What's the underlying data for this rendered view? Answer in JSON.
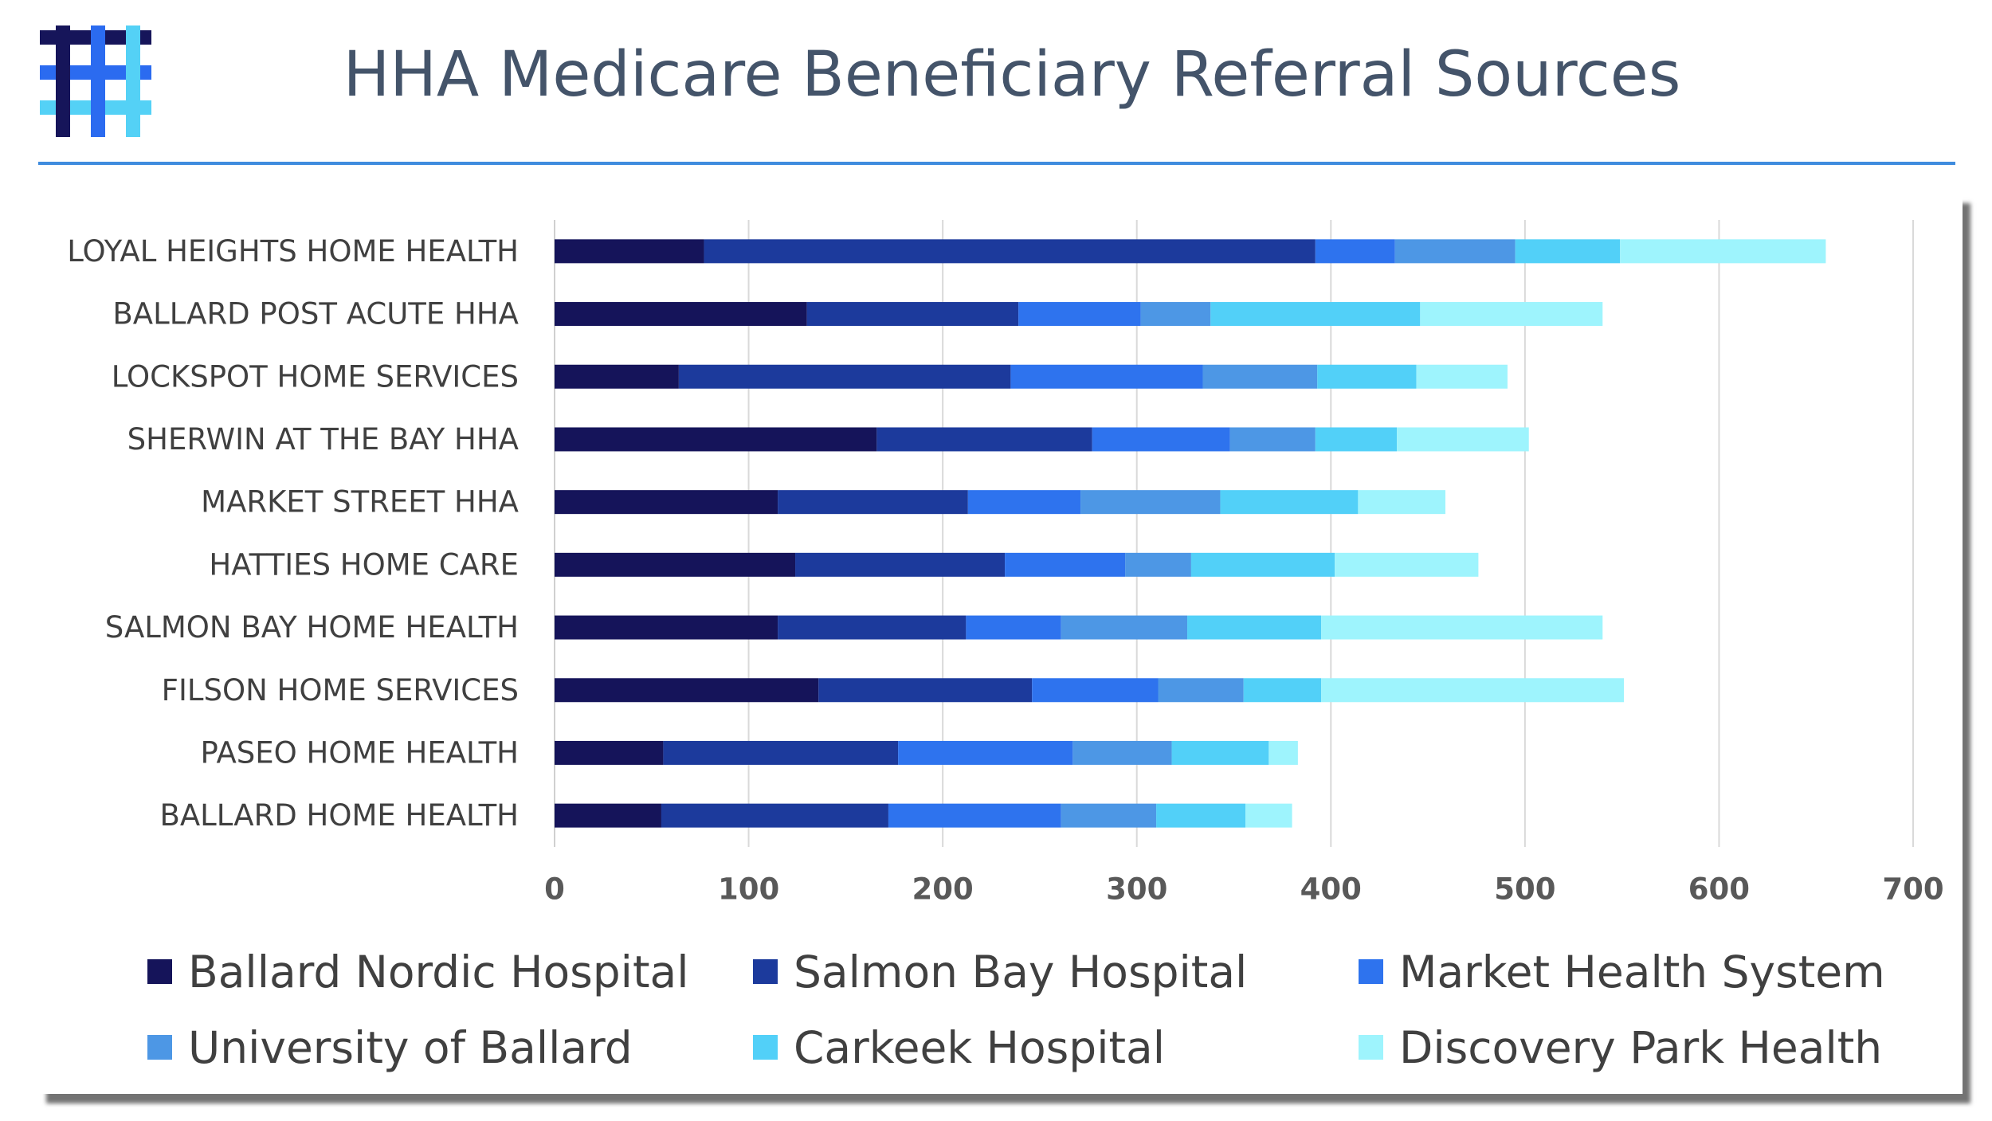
{
  "page": {
    "title": "HHA Medicare Beneficiary Referral Sources",
    "logo": {
      "icon": "hashtag-grid-logo",
      "colors": [
        "#16155a",
        "#2b6bf0",
        "#54d1f6"
      ]
    }
  },
  "chart_data": {
    "type": "bar",
    "orientation": "horizontal",
    "stacked": true,
    "title": "HHA Medicare Beneficiary Referral Sources",
    "xlabel": "",
    "ylabel": "",
    "xlim": [
      0,
      700
    ],
    "xticks": [
      0,
      100,
      200,
      300,
      400,
      500,
      600,
      700
    ],
    "grid": "vertical",
    "legend_position": "bottom",
    "categories": [
      "LOYAL HEIGHTS HOME HEALTH",
      "BALLARD POST ACUTE HHA",
      "LOCKSPOT HOME SERVICES",
      "SHERWIN AT THE BAY HHA",
      "MARKET STREET HHA",
      "HATTIES HOME CARE",
      "SALMON BAY HOME HEALTH",
      "FILSON HOME SERVICES",
      "PASEO HOME HEALTH",
      "BALLARD HOME HEALTH"
    ],
    "series": [
      {
        "name": "Ballard Nordic Hospital",
        "color": "#15145a",
        "values": [
          77,
          130,
          64,
          166,
          115,
          124,
          115,
          136,
          56,
          55
        ]
      },
      {
        "name": "Salmon Bay Hospital",
        "color": "#1c3a9c",
        "values": [
          315,
          109,
          171,
          111,
          98,
          108,
          97,
          110,
          121,
          117
        ]
      },
      {
        "name": "Market Health System",
        "color": "#2e73ee",
        "values": [
          41,
          63,
          99,
          71,
          58,
          62,
          49,
          65,
          90,
          89
        ]
      },
      {
        "name": "University of Ballard",
        "color": "#4d97e5",
        "values": [
          62,
          36,
          59,
          44,
          72,
          34,
          65,
          44,
          51,
          49
        ]
      },
      {
        "name": "Carkeek Hospital",
        "color": "#52d0f8",
        "values": [
          54,
          108,
          51,
          42,
          71,
          74,
          69,
          40,
          50,
          46
        ]
      },
      {
        "name": "Discovery Park Health",
        "color": "#9ef4fd",
        "values": [
          106,
          94,
          47,
          68,
          45,
          74,
          145,
          156,
          15,
          24
        ]
      }
    ]
  }
}
